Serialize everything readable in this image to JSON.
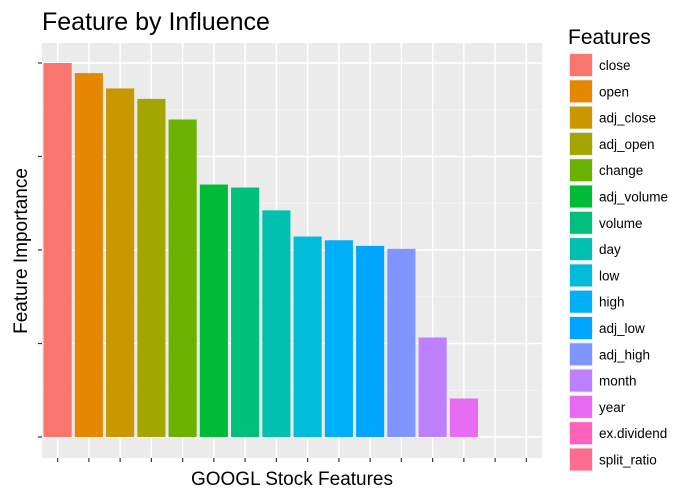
{
  "chart_data": {
    "type": "bar",
    "title": "Feature by Influence",
    "xlabel": "GOOGL Stock Features",
    "ylabel": "Feature Importance",
    "legend_title": "Features",
    "legend_position": "right",
    "grid": true,
    "y_tick_labels_shown": false,
    "x_tick_labels_shown": false,
    "ylim": [
      0,
      100
    ],
    "categories": [
      "close",
      "open",
      "adj_close",
      "adj_open",
      "change",
      "adj_volume",
      "volume",
      "day",
      "low",
      "high",
      "adj_low",
      "adj_high",
      "month",
      "year",
      "ex.dividend",
      "split_ratio"
    ],
    "values": [
      100,
      97.3,
      93.2,
      90.4,
      84.9,
      67.5,
      66.7,
      60.6,
      53.6,
      52.6,
      51.1,
      50.3,
      26.6,
      10.3,
      0,
      0
    ],
    "colors": [
      "#F8766D",
      "#E58700",
      "#C99800",
      "#A3A500",
      "#6BB100",
      "#00BA38",
      "#00BF7D",
      "#00C0AF",
      "#00BCD8",
      "#00B0F6",
      "#00A5FF",
      "#7F96FF",
      "#BF80FF",
      "#E76BF3",
      "#FF62BC",
      "#FF6C91"
    ]
  }
}
